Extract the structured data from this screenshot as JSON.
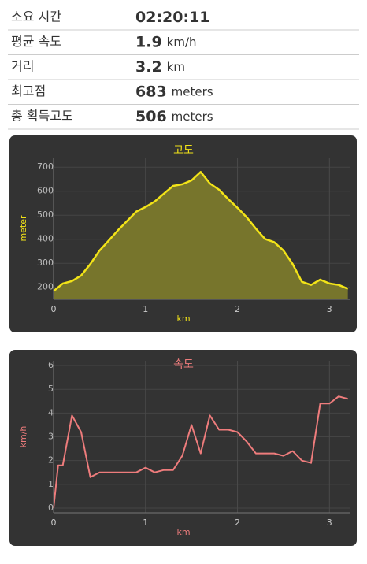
{
  "stats": [
    {
      "label": "소요 시간",
      "value": "02:20:11"
    },
    {
      "label": "평균 속도",
      "value": "1.9",
      "unit": "km/h"
    },
    {
      "label": "거리",
      "value": "3.2",
      "unit": "km"
    },
    {
      "label": "최고점",
      "value": "683",
      "unit": "meters"
    },
    {
      "label": "총 획득고도",
      "value": "506",
      "unit": "meters"
    }
  ],
  "chart_data": [
    {
      "type": "area",
      "title": "고도",
      "y_label": "meter",
      "x_label": "km",
      "color": "#f2e318",
      "fill": "#77752c",
      "grid": true,
      "x": [
        0,
        0.1,
        0.2,
        0.3,
        0.4,
        0.5,
        0.6,
        0.7,
        0.8,
        0.9,
        1.0,
        1.1,
        1.2,
        1.3,
        1.4,
        1.5,
        1.6,
        1.7,
        1.8,
        1.9,
        2.0,
        2.1,
        2.2,
        2.3,
        2.4,
        2.5,
        2.6,
        2.7,
        2.8,
        2.9,
        3.0,
        3.1,
        3.2
      ],
      "values": [
        184,
        216,
        226,
        249,
        297,
        353,
        395,
        437,
        476,
        515,
        534,
        557,
        590,
        622,
        629,
        645,
        680,
        632,
        606,
        567,
        531,
        492,
        444,
        401,
        388,
        353,
        297,
        223,
        210,
        232,
        216,
        210,
        194
      ],
      "xlim": [
        0,
        3.22
      ],
      "xticks": [
        0,
        1,
        2,
        3
      ],
      "ylim": [
        150,
        740
      ],
      "yticks": [
        200,
        300,
        400,
        500,
        600,
        700
      ]
    },
    {
      "type": "line",
      "title": "속도",
      "y_label": "km/h",
      "x_label": "km",
      "color": "#ee7c7c",
      "grid": true,
      "x": [
        0,
        0.05,
        0.1,
        0.2,
        0.3,
        0.4,
        0.5,
        0.6,
        0.7,
        0.8,
        0.9,
        1.0,
        1.1,
        1.2,
        1.3,
        1.4,
        1.5,
        1.6,
        1.7,
        1.8,
        1.9,
        2.0,
        2.1,
        2.2,
        2.3,
        2.4,
        2.5,
        2.6,
        2.7,
        2.8,
        2.9,
        3.0,
        3.1,
        3.2
      ],
      "values": [
        0,
        1.8,
        1.8,
        3.9,
        3.2,
        1.3,
        1.5,
        1.5,
        1.5,
        1.5,
        1.5,
        1.7,
        1.5,
        1.6,
        1.6,
        2.2,
        3.5,
        2.3,
        3.9,
        3.3,
        3.3,
        3.2,
        2.8,
        2.3,
        2.3,
        2.3,
        2.2,
        2.4,
        2.0,
        1.9,
        4.4,
        4.4,
        4.7,
        4.6
      ],
      "xlim": [
        0,
        3.22
      ],
      "xticks": [
        0,
        1,
        2,
        3
      ],
      "ylim": [
        -0.2,
        6.2
      ],
      "yticks": [
        0,
        1,
        2,
        3,
        4,
        5,
        6
      ]
    }
  ]
}
